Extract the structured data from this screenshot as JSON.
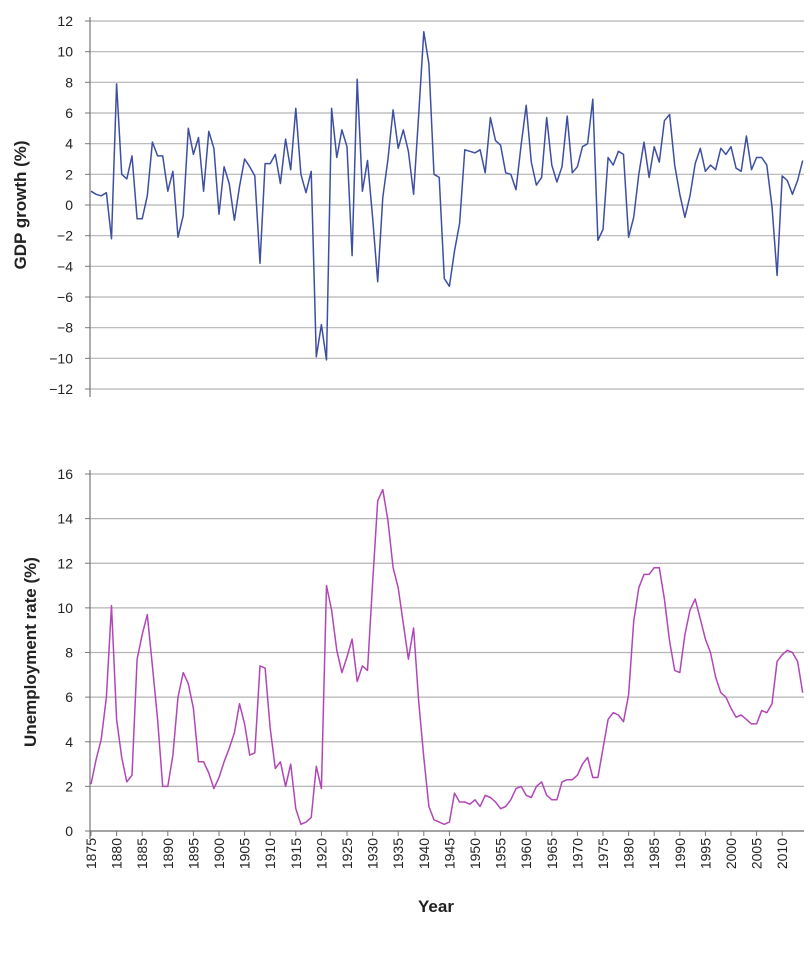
{
  "chart_data": [
    {
      "type": "line",
      "xlabel": "",
      "ylabel": "GDP growth (%)",
      "ylim": [
        -12,
        12
      ],
      "yticks": [
        12,
        10,
        8,
        6,
        4,
        2,
        0,
        -2,
        -4,
        -6,
        -8,
        -10,
        -12
      ],
      "ytick_labels": [
        "12",
        "10",
        "8",
        "6",
        "4",
        "2",
        "0",
        "−2",
        "−4",
        "−6",
        "−8",
        "−10",
        "−12"
      ],
      "grid": true,
      "color": "#3d4fa3",
      "x_start": 1875,
      "x_end": 2014,
      "values": [
        0.9,
        0.7,
        0.6,
        0.8,
        -2.2,
        7.9,
        2.0,
        1.7,
        3.2,
        -0.9,
        -0.9,
        0.6,
        4.1,
        3.2,
        3.2,
        0.9,
        2.2,
        -2.1,
        -0.7,
        5.0,
        3.3,
        4.4,
        0.9,
        4.8,
        3.7,
        -0.6,
        2.5,
        1.4,
        -1.0,
        1.2,
        3.0,
        2.5,
        1.9,
        -3.8,
        2.7,
        2.7,
        3.3,
        1.4,
        4.3,
        2.3,
        6.3,
        2.0,
        0.8,
        2.2,
        -9.9,
        -7.8,
        -10.1,
        6.3,
        3.1,
        4.9,
        3.8,
        -3.3,
        8.2,
        0.9,
        2.9,
        -0.8,
        -5.0,
        0.5,
        3.0,
        6.2,
        3.7,
        4.9,
        3.5,
        0.7,
        5.9,
        11.3,
        9.2,
        2.0,
        1.8,
        -4.8,
        -5.3,
        -3.0,
        -1.2,
        3.6,
        3.5,
        3.4,
        3.6,
        2.1,
        5.7,
        4.2,
        3.9,
        2.1,
        2.0,
        1.0,
        3.9,
        6.5,
        2.8,
        1.3,
        1.8,
        5.7,
        2.6,
        1.5,
        2.5,
        5.8,
        2.1,
        2.5,
        3.8,
        4.0,
        6.9,
        -2.3,
        -1.6,
        3.1,
        2.6,
        3.5,
        3.3,
        -2.1,
        -0.8,
        2.0,
        4.1,
        1.8,
        3.8,
        2.8,
        5.5,
        5.9,
        2.6,
        0.7,
        -0.8,
        0.6,
        2.7,
        3.7,
        2.2,
        2.6,
        2.3,
        3.7,
        3.3,
        3.8,
        2.4,
        2.2,
        4.5,
        2.3,
        3.1,
        3.1,
        2.6,
        -0.1,
        -4.6,
        1.9,
        1.6,
        0.7,
        1.6,
        2.9
      ]
    },
    {
      "type": "line",
      "xlabel": "Year",
      "ylabel": "Unemployment rate (%)",
      "ylim": [
        0,
        16
      ],
      "yticks": [
        16,
        14,
        12,
        10,
        8,
        6,
        4,
        2,
        0
      ],
      "ytick_labels": [
        "16",
        "14",
        "12",
        "10",
        "8",
        "6",
        "4",
        "2",
        "0"
      ],
      "xticks": [
        "1875",
        "1880",
        "1885",
        "1890",
        "1895",
        "1900",
        "1905",
        "1910",
        "1915",
        "1920",
        "1925",
        "1930",
        "1935",
        "1940",
        "1945",
        "1950",
        "1955",
        "1960",
        "1965",
        "1970",
        "1975",
        "1980",
        "1985",
        "1990",
        "1995",
        "2000",
        "2005",
        "2010"
      ],
      "grid": true,
      "color": "#b246b8",
      "x_start": 1875,
      "x_end": 2014,
      "values": [
        2.1,
        3.2,
        4.1,
        6.0,
        10.1,
        5.0,
        3.3,
        2.2,
        2.5,
        7.7,
        8.8,
        9.7,
        7.4,
        5.0,
        2.0,
        2.0,
        3.4,
        6.0,
        7.1,
        6.6,
        5.5,
        3.1,
        3.1,
        2.6,
        1.9,
        2.4,
        3.1,
        3.7,
        4.4,
        5.7,
        4.8,
        3.4,
        3.5,
        7.4,
        7.3,
        4.6,
        2.8,
        3.1,
        2.0,
        3.0,
        1.0,
        0.3,
        0.4,
        0.6,
        2.9,
        1.9,
        11.0,
        9.9,
        8.1,
        7.1,
        7.8,
        8.6,
        6.7,
        7.4,
        7.2,
        11.1,
        14.8,
        15.3,
        13.9,
        11.8,
        10.9,
        9.3,
        7.7,
        9.1,
        5.8,
        3.3,
        1.1,
        0.5,
        0.4,
        0.3,
        0.4,
        1.7,
        1.3,
        1.3,
        1.2,
        1.4,
        1.1,
        1.6,
        1.5,
        1.3,
        1.0,
        1.1,
        1.4,
        1.9,
        2.0,
        1.6,
        1.5,
        2.0,
        2.2,
        1.6,
        1.4,
        1.4,
        2.2,
        2.3,
        2.3,
        2.5,
        3.0,
        3.3,
        2.4,
        2.4,
        3.7,
        5.0,
        5.3,
        5.2,
        4.9,
        6.1,
        9.4,
        10.9,
        11.5,
        11.5,
        11.8,
        11.8,
        10.4,
        8.5,
        7.2,
        7.1,
        8.8,
        9.9,
        10.4,
        9.5,
        8.6,
        8.0,
        6.9,
        6.2,
        6.0,
        5.5,
        5.1,
        5.2,
        5.0,
        4.8,
        4.8,
        5.4,
        5.3,
        5.7,
        7.6,
        7.9,
        8.1,
        8.0,
        7.6,
        6.2
      ]
    }
  ]
}
